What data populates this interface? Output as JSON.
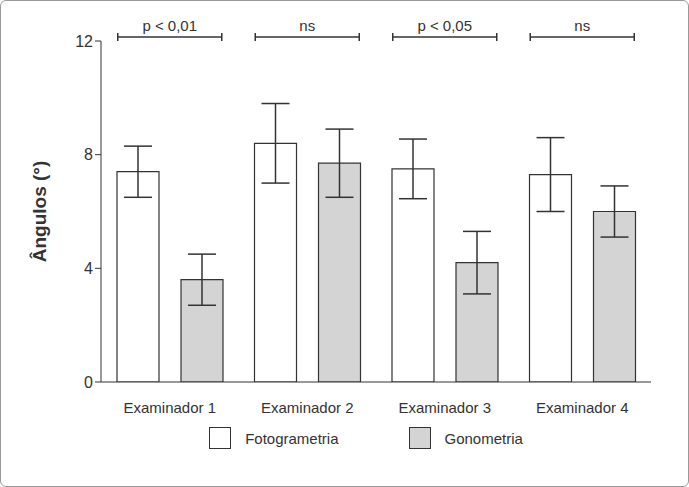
{
  "chart_data": {
    "type": "bar",
    "categories": [
      "Examinador 1",
      "Examinador 2",
      "Examinador 3",
      "Examinador 4"
    ],
    "series": [
      {
        "name": "Fotogrametria",
        "color": "#ffffff",
        "values": [
          7.4,
          8.4,
          7.5,
          7.3
        ],
        "errors": [
          0.9,
          1.4,
          1.05,
          1.3
        ]
      },
      {
        "name": "Gonometria",
        "color": "#d4d4d4",
        "values": [
          3.6,
          7.7,
          4.2,
          6.0
        ],
        "errors": [
          0.9,
          1.2,
          1.1,
          0.9
        ]
      }
    ],
    "y_label": "Ângulos (°)",
    "annotations": [
      "p < 0,01",
      "ns",
      "p < 0,05",
      "ns"
    ],
    "ylim": [
      0,
      12
    ],
    "yticks": [
      0,
      4,
      8,
      12
    ],
    "grid": false,
    "legend": "bottom"
  }
}
